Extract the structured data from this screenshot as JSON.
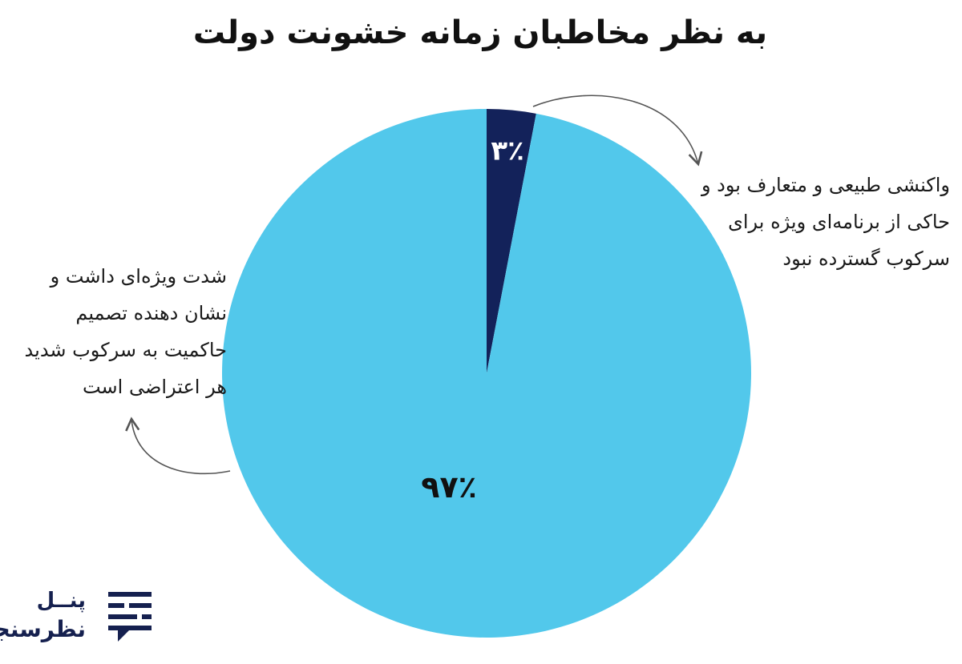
{
  "chart_data": {
    "type": "pie",
    "title": "به نظر مخاطبان زمانه خشونت دولت",
    "slices": [
      {
        "label": "۳٪",
        "value": 3,
        "color": "#13225a",
        "label_color": "#ffffff",
        "annotation": [
          "واکنشی طبیعی و متعارف بود و",
          "حاکی از برنامه‌ای ویژه برای",
          "سرکوب گسترده نبود"
        ]
      },
      {
        "label": "۹۷٪",
        "value": 97,
        "color": "#52c8eb",
        "label_color": "#111111",
        "annotation": [
          "شدت ویژه‌ای داشت و",
          "نشان دهنده تصمیم",
          "حاکمیت به سرکوب شدید",
          "هر اعتراضی است"
        ]
      }
    ],
    "start_angle": "top",
    "direction": "clockwise"
  },
  "logo": {
    "line1": "پنــل",
    "line2": "نظرسنجی",
    "color": "#15204f",
    "icon": "chat-bubble-lines-icon"
  }
}
